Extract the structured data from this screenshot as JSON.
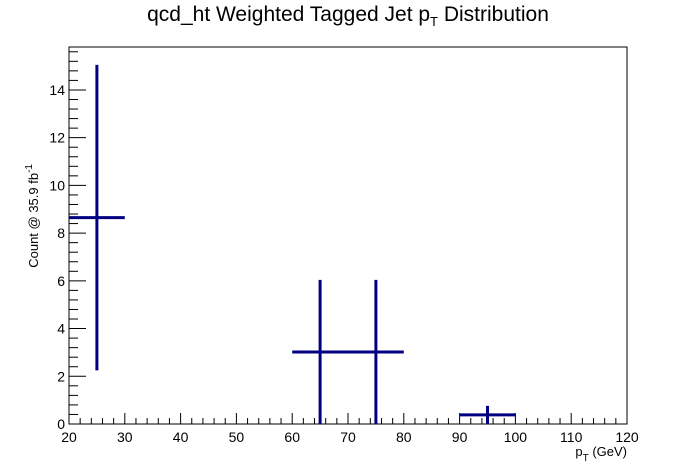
{
  "chart_data": {
    "type": "scatter",
    "style": "histogram error bars",
    "title_main": "qcd_ht Weighted Tagged Jet p",
    "title_sub": "T",
    "title_tail": " Distribution",
    "xlabel_main": "p",
    "xlabel_sub": "T",
    "xlabel_tail": " (GeV)",
    "ylabel_main": "Count @ 35.9 fb",
    "ylabel_sup": "-1",
    "xlim": [
      20,
      120
    ],
    "ylim": [
      0,
      15.8
    ],
    "x_ticks": [
      20,
      30,
      40,
      50,
      60,
      70,
      80,
      90,
      100,
      110,
      120
    ],
    "y_ticks": [
      0,
      2,
      4,
      6,
      8,
      10,
      12,
      14
    ],
    "color": "#000080",
    "grid": false,
    "legend": "none",
    "points": [
      {
        "x_low": 20,
        "x_high": 30,
        "x": 25,
        "y": 8.65,
        "err_low": 2.25,
        "err_high": 15.05
      },
      {
        "x_low": 60,
        "x_high": 70,
        "x": 65,
        "y": 3.02,
        "err_low": 0,
        "err_high": 6.04
      },
      {
        "x_low": 70,
        "x_high": 80,
        "x": 75,
        "y": 3.02,
        "err_low": 0,
        "err_high": 6.04
      },
      {
        "x_low": 90,
        "x_high": 100,
        "x": 95,
        "y": 0.38,
        "err_low": 0,
        "err_high": 0.76
      }
    ]
  }
}
